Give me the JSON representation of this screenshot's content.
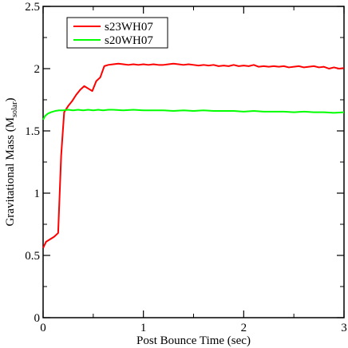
{
  "chart_data": {
    "type": "line",
    "title": "",
    "xlabel": "Post Bounce Time (sec)",
    "ylabel": {
      "main": "Gravitational Mass (M",
      "subscript": "solar",
      "close": ")"
    },
    "xlim": [
      0,
      3
    ],
    "ylim": [
      0,
      2.5
    ],
    "xticks": [
      0,
      1,
      2,
      3
    ],
    "xtick_labels": [
      "0",
      "1",
      "2",
      "3"
    ],
    "yticks": [
      0,
      0.5,
      1,
      1.5,
      2,
      2.5
    ],
    "ytick_labels": [
      "0",
      "0.5",
      "1",
      "1.5",
      "2",
      "2.5"
    ],
    "grid": false,
    "legend_position": "top-left",
    "series": [
      {
        "name": "s23WH07",
        "color": "#ff0000",
        "x": [
          0.0,
          0.03,
          0.07,
          0.11,
          0.15,
          0.18,
          0.21,
          0.25,
          0.29,
          0.33,
          0.37,
          0.41,
          0.45,
          0.49,
          0.53,
          0.57,
          0.61,
          0.65,
          0.7,
          0.75,
          0.8,
          0.85,
          0.9,
          0.95,
          1.0,
          1.05,
          1.1,
          1.15,
          1.2,
          1.25,
          1.3,
          1.35,
          1.4,
          1.45,
          1.5,
          1.55,
          1.6,
          1.65,
          1.7,
          1.75,
          1.8,
          1.85,
          1.9,
          1.95,
          2.0,
          2.05,
          2.1,
          2.15,
          2.2,
          2.25,
          2.3,
          2.35,
          2.4,
          2.45,
          2.5,
          2.55,
          2.6,
          2.65,
          2.7,
          2.75,
          2.8,
          2.85,
          2.9,
          2.95,
          3.0
        ],
        "y": [
          0.56,
          0.61,
          0.63,
          0.65,
          0.68,
          1.3,
          1.65,
          1.7,
          1.74,
          1.79,
          1.83,
          1.86,
          1.84,
          1.82,
          1.9,
          1.93,
          2.02,
          2.03,
          2.035,
          2.04,
          2.035,
          2.03,
          2.035,
          2.03,
          2.035,
          2.03,
          2.035,
          2.03,
          2.03,
          2.035,
          2.04,
          2.035,
          2.03,
          2.035,
          2.03,
          2.025,
          2.03,
          2.025,
          2.03,
          2.02,
          2.025,
          2.02,
          2.03,
          2.02,
          2.025,
          2.02,
          2.03,
          2.015,
          2.02,
          2.015,
          2.02,
          2.015,
          2.02,
          2.01,
          2.015,
          2.02,
          2.01,
          2.015,
          2.02,
          2.01,
          2.015,
          2.0,
          2.01,
          2.0,
          2.005
        ]
      },
      {
        "name": "s20WH07",
        "color": "#00ff00",
        "x": [
          0.0,
          0.02,
          0.05,
          0.08,
          0.12,
          0.16,
          0.2,
          0.25,
          0.3,
          0.35,
          0.4,
          0.45,
          0.5,
          0.55,
          0.6,
          0.65,
          0.7,
          0.8,
          0.9,
          1.0,
          1.1,
          1.2,
          1.3,
          1.4,
          1.5,
          1.6,
          1.7,
          1.8,
          1.9,
          2.0,
          2.1,
          2.2,
          2.3,
          2.4,
          2.5,
          2.6,
          2.7,
          2.8,
          2.9,
          3.0
        ],
        "y": [
          1.59,
          1.62,
          1.64,
          1.65,
          1.66,
          1.665,
          1.665,
          1.67,
          1.665,
          1.67,
          1.665,
          1.67,
          1.665,
          1.67,
          1.665,
          1.67,
          1.67,
          1.665,
          1.67,
          1.665,
          1.665,
          1.665,
          1.66,
          1.665,
          1.66,
          1.665,
          1.66,
          1.66,
          1.66,
          1.655,
          1.66,
          1.655,
          1.655,
          1.655,
          1.65,
          1.655,
          1.65,
          1.65,
          1.645,
          1.65
        ]
      }
    ]
  }
}
